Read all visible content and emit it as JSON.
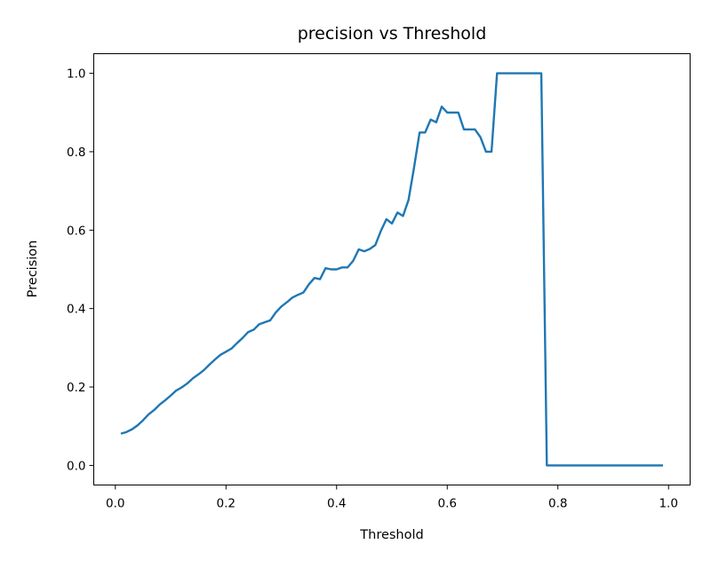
{
  "chart_data": {
    "type": "line",
    "title": "precision vs Threshold",
    "xlabel": "Threshold",
    "ylabel": "Precision",
    "xlim": [
      -0.039,
      1.039
    ],
    "ylim": [
      -0.05,
      1.05
    ],
    "grid": false,
    "legend": "none",
    "xticks": [
      0.0,
      0.2,
      0.4,
      0.6,
      0.8,
      1.0
    ],
    "xtick_labels": [
      "0.0",
      "0.2",
      "0.4",
      "0.6",
      "0.8",
      "1.0"
    ],
    "yticks": [
      0.0,
      0.2,
      0.4,
      0.6,
      0.8,
      1.0
    ],
    "ytick_labels": [
      "0.0",
      "0.2",
      "0.4",
      "0.6",
      "0.8",
      "1.0"
    ],
    "series": [
      {
        "color": "#1f77b4",
        "x": [
          0.01,
          0.02,
          0.03,
          0.04,
          0.05,
          0.06,
          0.07,
          0.08,
          0.09,
          0.1,
          0.11,
          0.12,
          0.13,
          0.14,
          0.15,
          0.16,
          0.17,
          0.18,
          0.19,
          0.2,
          0.21,
          0.22,
          0.23,
          0.24,
          0.25,
          0.26,
          0.27,
          0.28,
          0.29,
          0.3,
          0.31,
          0.32,
          0.33,
          0.34,
          0.35,
          0.36,
          0.37,
          0.38,
          0.39,
          0.4,
          0.41,
          0.42,
          0.43,
          0.44,
          0.45,
          0.46,
          0.47,
          0.48,
          0.49,
          0.5,
          0.51,
          0.52,
          0.53,
          0.54,
          0.55,
          0.56,
          0.57,
          0.58,
          0.59,
          0.6,
          0.61,
          0.62,
          0.63,
          0.64,
          0.65,
          0.66,
          0.67,
          0.68,
          0.69,
          0.7,
          0.71,
          0.72,
          0.73,
          0.74,
          0.75,
          0.76,
          0.77,
          0.78,
          0.79,
          0.8,
          0.81,
          0.82,
          0.83,
          0.84,
          0.85,
          0.86,
          0.87,
          0.88,
          0.89,
          0.9,
          0.91,
          0.92,
          0.93,
          0.94,
          0.95,
          0.96,
          0.97,
          0.98,
          0.99
        ],
        "y": [
          0.081,
          0.085,
          0.092,
          0.102,
          0.115,
          0.13,
          0.141,
          0.155,
          0.166,
          0.178,
          0.191,
          0.199,
          0.209,
          0.222,
          0.232,
          0.243,
          0.257,
          0.27,
          0.282,
          0.29,
          0.298,
          0.312,
          0.325,
          0.34,
          0.346,
          0.36,
          0.365,
          0.37,
          0.39,
          0.405,
          0.416,
          0.428,
          0.435,
          0.441,
          0.462,
          0.478,
          0.475,
          0.503,
          0.5,
          0.5,
          0.505,
          0.505,
          0.522,
          0.551,
          0.546,
          0.552,
          0.562,
          0.598,
          0.628,
          0.617,
          0.645,
          0.636,
          0.677,
          0.76,
          0.849,
          0.849,
          0.882,
          0.875,
          0.915,
          0.9,
          0.9,
          0.9,
          0.857,
          0.857,
          0.857,
          0.837,
          0.8,
          0.8,
          1.0,
          1.0,
          1.0,
          1.0,
          1.0,
          1.0,
          1.0,
          1.0,
          1.0,
          0.0,
          0.0,
          0.0,
          0.0,
          0.0,
          0.0,
          0.0,
          0.0,
          0.0,
          0.0,
          0.0,
          0.0,
          0.0,
          0.0,
          0.0,
          0.0,
          0.0,
          0.0,
          0.0,
          0.0,
          0.0,
          0.0
        ]
      }
    ]
  }
}
